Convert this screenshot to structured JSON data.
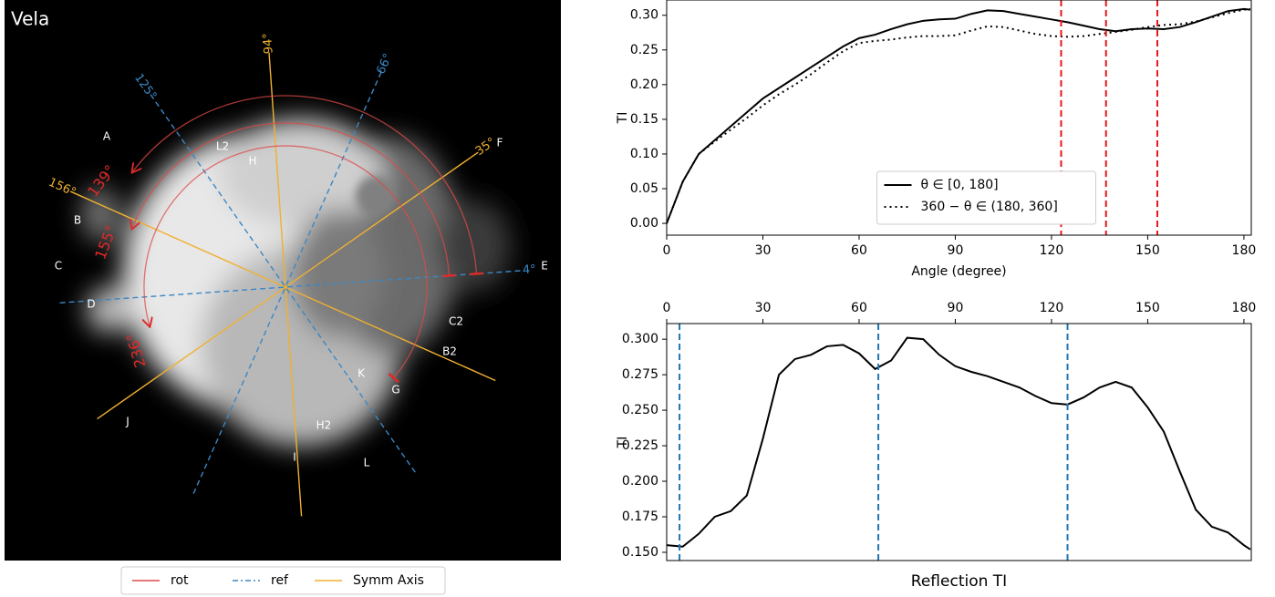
{
  "chart_data": [
    {
      "type": "image",
      "title": "Vela",
      "symm_axes": [
        {
          "value": 94,
          "label": "94°"
        },
        {
          "value": 35,
          "label": "35°"
        },
        {
          "value": 156,
          "label": "156°"
        }
      ],
      "ref_axes": [
        {
          "value": 66,
          "label": "66°"
        },
        {
          "value": 125,
          "label": "125°"
        },
        {
          "value": 4,
          "label": "4°"
        }
      ],
      "rotations": [
        {
          "value": 139,
          "label": "139°"
        },
        {
          "value": 155,
          "label": "155°"
        },
        {
          "value": 236,
          "label": "236°"
        }
      ],
      "regions": [
        "A",
        "B",
        "C",
        "D",
        "E",
        "F",
        "G",
        "H",
        "H2",
        "I",
        "J",
        "K",
        "L",
        "L2",
        "B2",
        "C2"
      ],
      "legend": [
        "rot",
        "ref",
        "Symm Axis"
      ],
      "colors": {
        "rot": "#e04848",
        "ref": "#3b87c4",
        "symm": "#f0b030"
      }
    },
    {
      "type": "line",
      "ylabel": "TI",
      "xlabel": "Angle (degree)",
      "x": [
        0,
        5,
        10,
        15,
        20,
        25,
        30,
        35,
        40,
        45,
        50,
        55,
        60,
        65,
        70,
        75,
        80,
        85,
        90,
        95,
        100,
        105,
        110,
        115,
        120,
        125,
        130,
        135,
        140,
        145,
        150,
        155,
        160,
        165,
        170,
        175,
        180,
        182
      ],
      "series": [
        {
          "name": "θ ∈ [0, 180]",
          "color": "#000000",
          "style": "solid",
          "values": [
            0,
            0.06,
            0.1,
            0.12,
            0.14,
            0.16,
            0.18,
            0.195,
            0.21,
            0.225,
            0.24,
            0.255,
            0.267,
            0.272,
            0.28,
            0.287,
            0.292,
            0.294,
            0.295,
            0.302,
            0.307,
            0.306,
            0.302,
            0.298,
            0.294,
            0.29,
            0.285,
            0.28,
            0.277,
            0.28,
            0.281,
            0.28,
            0.283,
            0.29,
            0.298,
            0.306,
            0.309,
            0.308
          ]
        },
        {
          "name": "360 − θ ∈ (180, 360]",
          "color": "#000000",
          "style": "dotted",
          "values": [
            0,
            0.06,
            0.1,
            0.118,
            0.135,
            0.152,
            0.17,
            0.186,
            0.2,
            0.215,
            0.232,
            0.248,
            0.26,
            0.263,
            0.265,
            0.268,
            0.27,
            0.27,
            0.271,
            0.278,
            0.284,
            0.283,
            0.278,
            0.273,
            0.27,
            0.269,
            0.27,
            0.273,
            0.276,
            0.279,
            0.283,
            0.286,
            0.287,
            0.291,
            0.297,
            0.303,
            0.308,
            0.309
          ]
        }
      ],
      "vlines": {
        "values": [
          123,
          137,
          153
        ],
        "color": "#e8161b"
      },
      "xlim": [
        0,
        182.3
      ],
      "ylim": [
        -0.017,
        0.322
      ],
      "xticks": [
        0,
        30,
        60,
        90,
        120,
        150,
        180
      ],
      "yticks": [
        {
          "value": 0,
          "label": "0.00"
        },
        {
          "value": 0.05,
          "label": "0.05"
        },
        {
          "value": 0.1,
          "label": "0.10"
        },
        {
          "value": 0.15,
          "label": "0.15"
        },
        {
          "value": 0.2,
          "label": "0.20"
        },
        {
          "value": 0.25,
          "label": "0.25"
        },
        {
          "value": 0.3,
          "label": "0.30"
        }
      ],
      "legend": "lower center",
      "xaxis": "bottom"
    },
    {
      "type": "line",
      "title": "Reflection TI",
      "ylabel": "TI",
      "x": [
        0,
        5,
        10,
        15,
        20,
        25,
        30,
        35,
        40,
        45,
        50,
        55,
        60,
        65,
        70,
        75,
        80,
        85,
        90,
        95,
        100,
        105,
        110,
        115,
        120,
        125,
        130,
        135,
        140,
        145,
        150,
        155,
        160,
        165,
        170,
        175,
        180,
        182
      ],
      "series": [
        {
          "color": "#000000",
          "style": "solid",
          "values": [
            0.155,
            0.154,
            0.163,
            0.175,
            0.179,
            0.19,
            0.23,
            0.275,
            0.286,
            0.289,
            0.295,
            0.296,
            0.29,
            0.279,
            0.285,
            0.301,
            0.3,
            0.289,
            0.281,
            0.277,
            0.274,
            0.27,
            0.266,
            0.26,
            0.255,
            0.254,
            0.259,
            0.266,
            0.27,
            0.266,
            0.252,
            0.235,
            0.207,
            0.18,
            0.168,
            0.164,
            0.155,
            0.152
          ]
        }
      ],
      "vlines": {
        "values": [
          4,
          66,
          125
        ],
        "color": "#1f77b4"
      },
      "xlim": [
        0,
        182.3
      ],
      "ylim": [
        0.1442,
        0.311
      ],
      "xticks": [
        0,
        30,
        60,
        90,
        120,
        150,
        180
      ],
      "yticks": [
        {
          "value": 0.15,
          "label": "0.150"
        },
        {
          "value": 0.175,
          "label": "0.175"
        },
        {
          "value": 0.2,
          "label": "0.200"
        },
        {
          "value": 0.225,
          "label": "0.225"
        },
        {
          "value": 0.25,
          "label": "0.250"
        },
        {
          "value": 0.275,
          "label": "0.275"
        },
        {
          "value": 0.3,
          "label": "0.300"
        }
      ],
      "xaxis": "top"
    }
  ]
}
